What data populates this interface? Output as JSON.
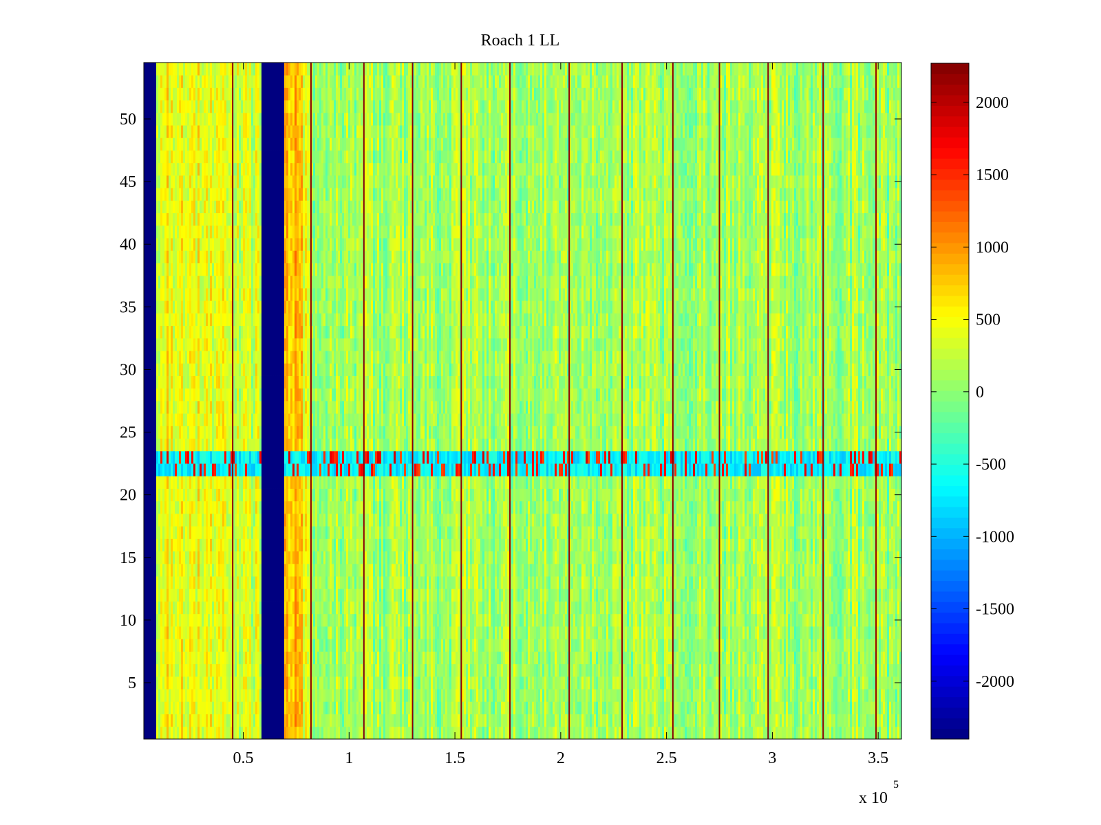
{
  "chart_data": {
    "type": "heatmap",
    "title": "Roach 1 LL",
    "xlabel": "",
    "ylabel": "",
    "x_multiplier_label": "x 10",
    "x_multiplier_exponent": "5",
    "xlim": [
      3000,
      361000
    ],
    "ylim": [
      0.5,
      54.5
    ],
    "x_ticks": [
      {
        "value": 50000,
        "label": "0.5"
      },
      {
        "value": 100000,
        "label": "1"
      },
      {
        "value": 150000,
        "label": "1.5"
      },
      {
        "value": 200000,
        "label": "2"
      },
      {
        "value": 250000,
        "label": "2.5"
      },
      {
        "value": 300000,
        "label": "3"
      },
      {
        "value": 350000,
        "label": "3.5"
      }
    ],
    "y_ticks": [
      {
        "value": 5,
        "label": "5"
      },
      {
        "value": 10,
        "label": "10"
      },
      {
        "value": 15,
        "label": "15"
      },
      {
        "value": 20,
        "label": "20"
      },
      {
        "value": 25,
        "label": "25"
      },
      {
        "value": 30,
        "label": "30"
      },
      {
        "value": 35,
        "label": "35"
      },
      {
        "value": 40,
        "label": "40"
      },
      {
        "value": 45,
        "label": "45"
      },
      {
        "value": 50,
        "label": "50"
      }
    ],
    "colorbar": {
      "colormap": "jet",
      "range": [
        -2400,
        2270
      ],
      "ticks": [
        {
          "value": 2000,
          "label": "2000"
        },
        {
          "value": 1500,
          "label": "1500"
        },
        {
          "value": 1000,
          "label": "1000"
        },
        {
          "value": 500,
          "label": "500"
        },
        {
          "value": 0,
          "label": "0"
        },
        {
          "value": -500,
          "label": "-500"
        },
        {
          "value": -1000,
          "label": "-1000"
        },
        {
          "value": -1500,
          "label": "-1500"
        },
        {
          "value": -2000,
          "label": "-2000"
        }
      ]
    },
    "rows": 54,
    "baseline_value": 100,
    "regions": [
      {
        "x_start": 3000,
        "x_end": 9000,
        "value": -2400,
        "note": "blank"
      },
      {
        "x_start": 9000,
        "x_end": 45000,
        "value": 450
      },
      {
        "x_start": 45000,
        "x_end": 59000,
        "value": 300
      },
      {
        "x_start": 59000,
        "x_end": 69000,
        "value": -2400
      },
      {
        "x_start": 69000,
        "x_end": 78000,
        "value": 900
      },
      {
        "x_start": 78000,
        "x_end": 82000,
        "value": 400
      },
      {
        "x_start": 82000,
        "x_end": 361000,
        "value": 100
      }
    ],
    "vertical_lines_x": [
      45000,
      82000,
      107000,
      130000,
      153000,
      176000,
      204000,
      229000,
      253000,
      275000,
      298000,
      324000,
      349000
    ],
    "vertical_lines_value": 2200,
    "band_rows": [
      22,
      23
    ],
    "band_mean_value": -700,
    "band_spike_value": 1900
  }
}
